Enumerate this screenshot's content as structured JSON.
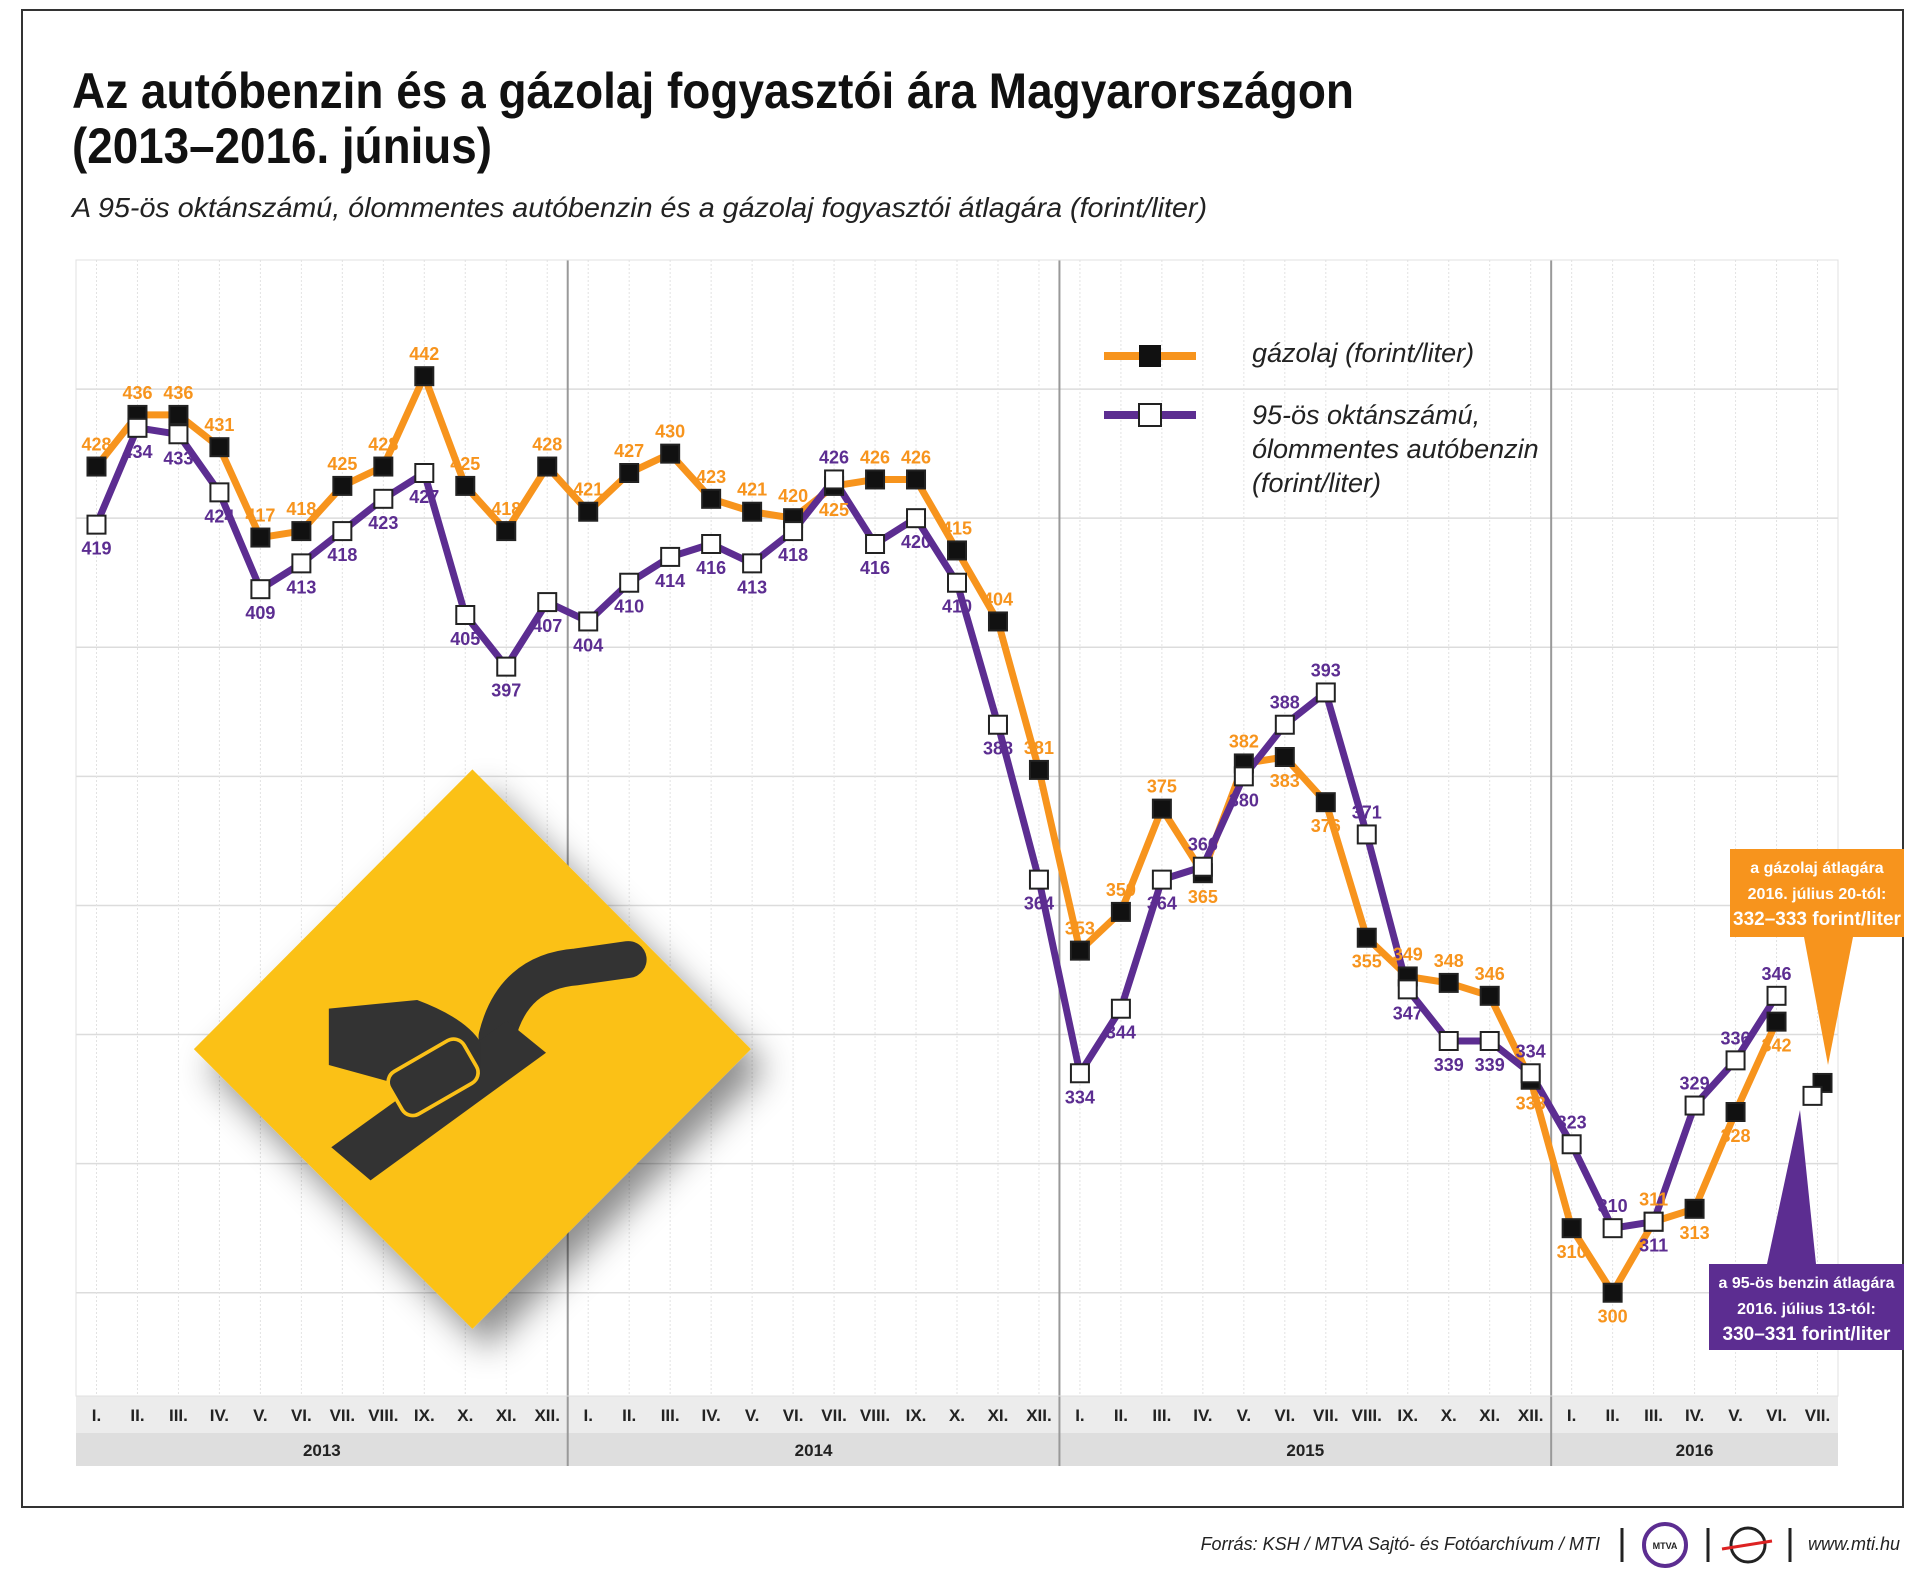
{
  "chart_data": {
    "type": "line",
    "title": [
      "Az autóbenzin és a gázolaj fogyasztói ára Magyarországon",
      "(2013–2016. június)"
    ],
    "subtitle": "A 95-ös oktánszámú, ólommentes autóbenzin és a gázolaj fogyasztói átlagára (forint/liter)",
    "categories": [
      "I.",
      "II.",
      "III.",
      "IV.",
      "V.",
      "VI.",
      "VII.",
      "VIII.",
      "IX.",
      "X.",
      "XI.",
      "XII.",
      "I.",
      "II.",
      "III.",
      "IV.",
      "V.",
      "VI.",
      "VII.",
      "VIII.",
      "IX.",
      "X.",
      "XI.",
      "XII.",
      "I.",
      "II.",
      "III.",
      "IV.",
      "V.",
      "VI.",
      "VII.",
      "VIII.",
      "IX.",
      "X.",
      "XI.",
      "XII.",
      "I.",
      "II.",
      "III.",
      "IV.",
      "V.",
      "VI.",
      "VII."
    ],
    "years": [
      "2013",
      "2014",
      "2015",
      "2016"
    ],
    "ylim": [
      284,
      460
    ],
    "yticks": [
      300,
      320,
      340,
      360,
      380,
      400,
      420,
      440
    ],
    "grid": true,
    "series": [
      {
        "name": "gázolaj (forint/liter)",
        "color": "#f7941d",
        "values": [
          428,
          436,
          436,
          431,
          417,
          418,
          425,
          428,
          442,
          425,
          418,
          428,
          421,
          427,
          430,
          423,
          421,
          420,
          425,
          426,
          426,
          415,
          404,
          381,
          353,
          359,
          375,
          365,
          382,
          383,
          376,
          355,
          349,
          348,
          346,
          333,
          310,
          300,
          311,
          313,
          328,
          342,
          null
        ],
        "latest": 332.5,
        "latest_note": [
          "a gázolaj átlagára",
          "2016. július 20-tól:",
          "332–333 forint/liter"
        ]
      },
      {
        "name": "95-ös oktánszámú, ólommentes autóbenzin (forint/liter)",
        "color": "#5c2d91",
        "values": [
          419,
          434,
          433,
          424,
          409,
          413,
          418,
          423,
          427,
          405,
          397,
          407,
          404,
          410,
          414,
          416,
          413,
          418,
          426,
          416,
          420,
          410,
          388,
          364,
          334,
          344,
          364,
          366,
          380,
          388,
          393,
          371,
          347,
          339,
          339,
          334,
          323,
          310,
          311,
          329,
          336,
          346,
          null
        ],
        "latest": 330.5,
        "latest_note": [
          "a 95-ös benzin átlagára",
          "2016. július 13-tól:",
          "330–331 forint/liter"
        ]
      }
    ]
  },
  "footer": {
    "source": "Forrás: KSH / MTVA Sajtó- és Fotóarchívum / MTI",
    "logo_text": "MTVA",
    "website": "www.mti.hu"
  }
}
